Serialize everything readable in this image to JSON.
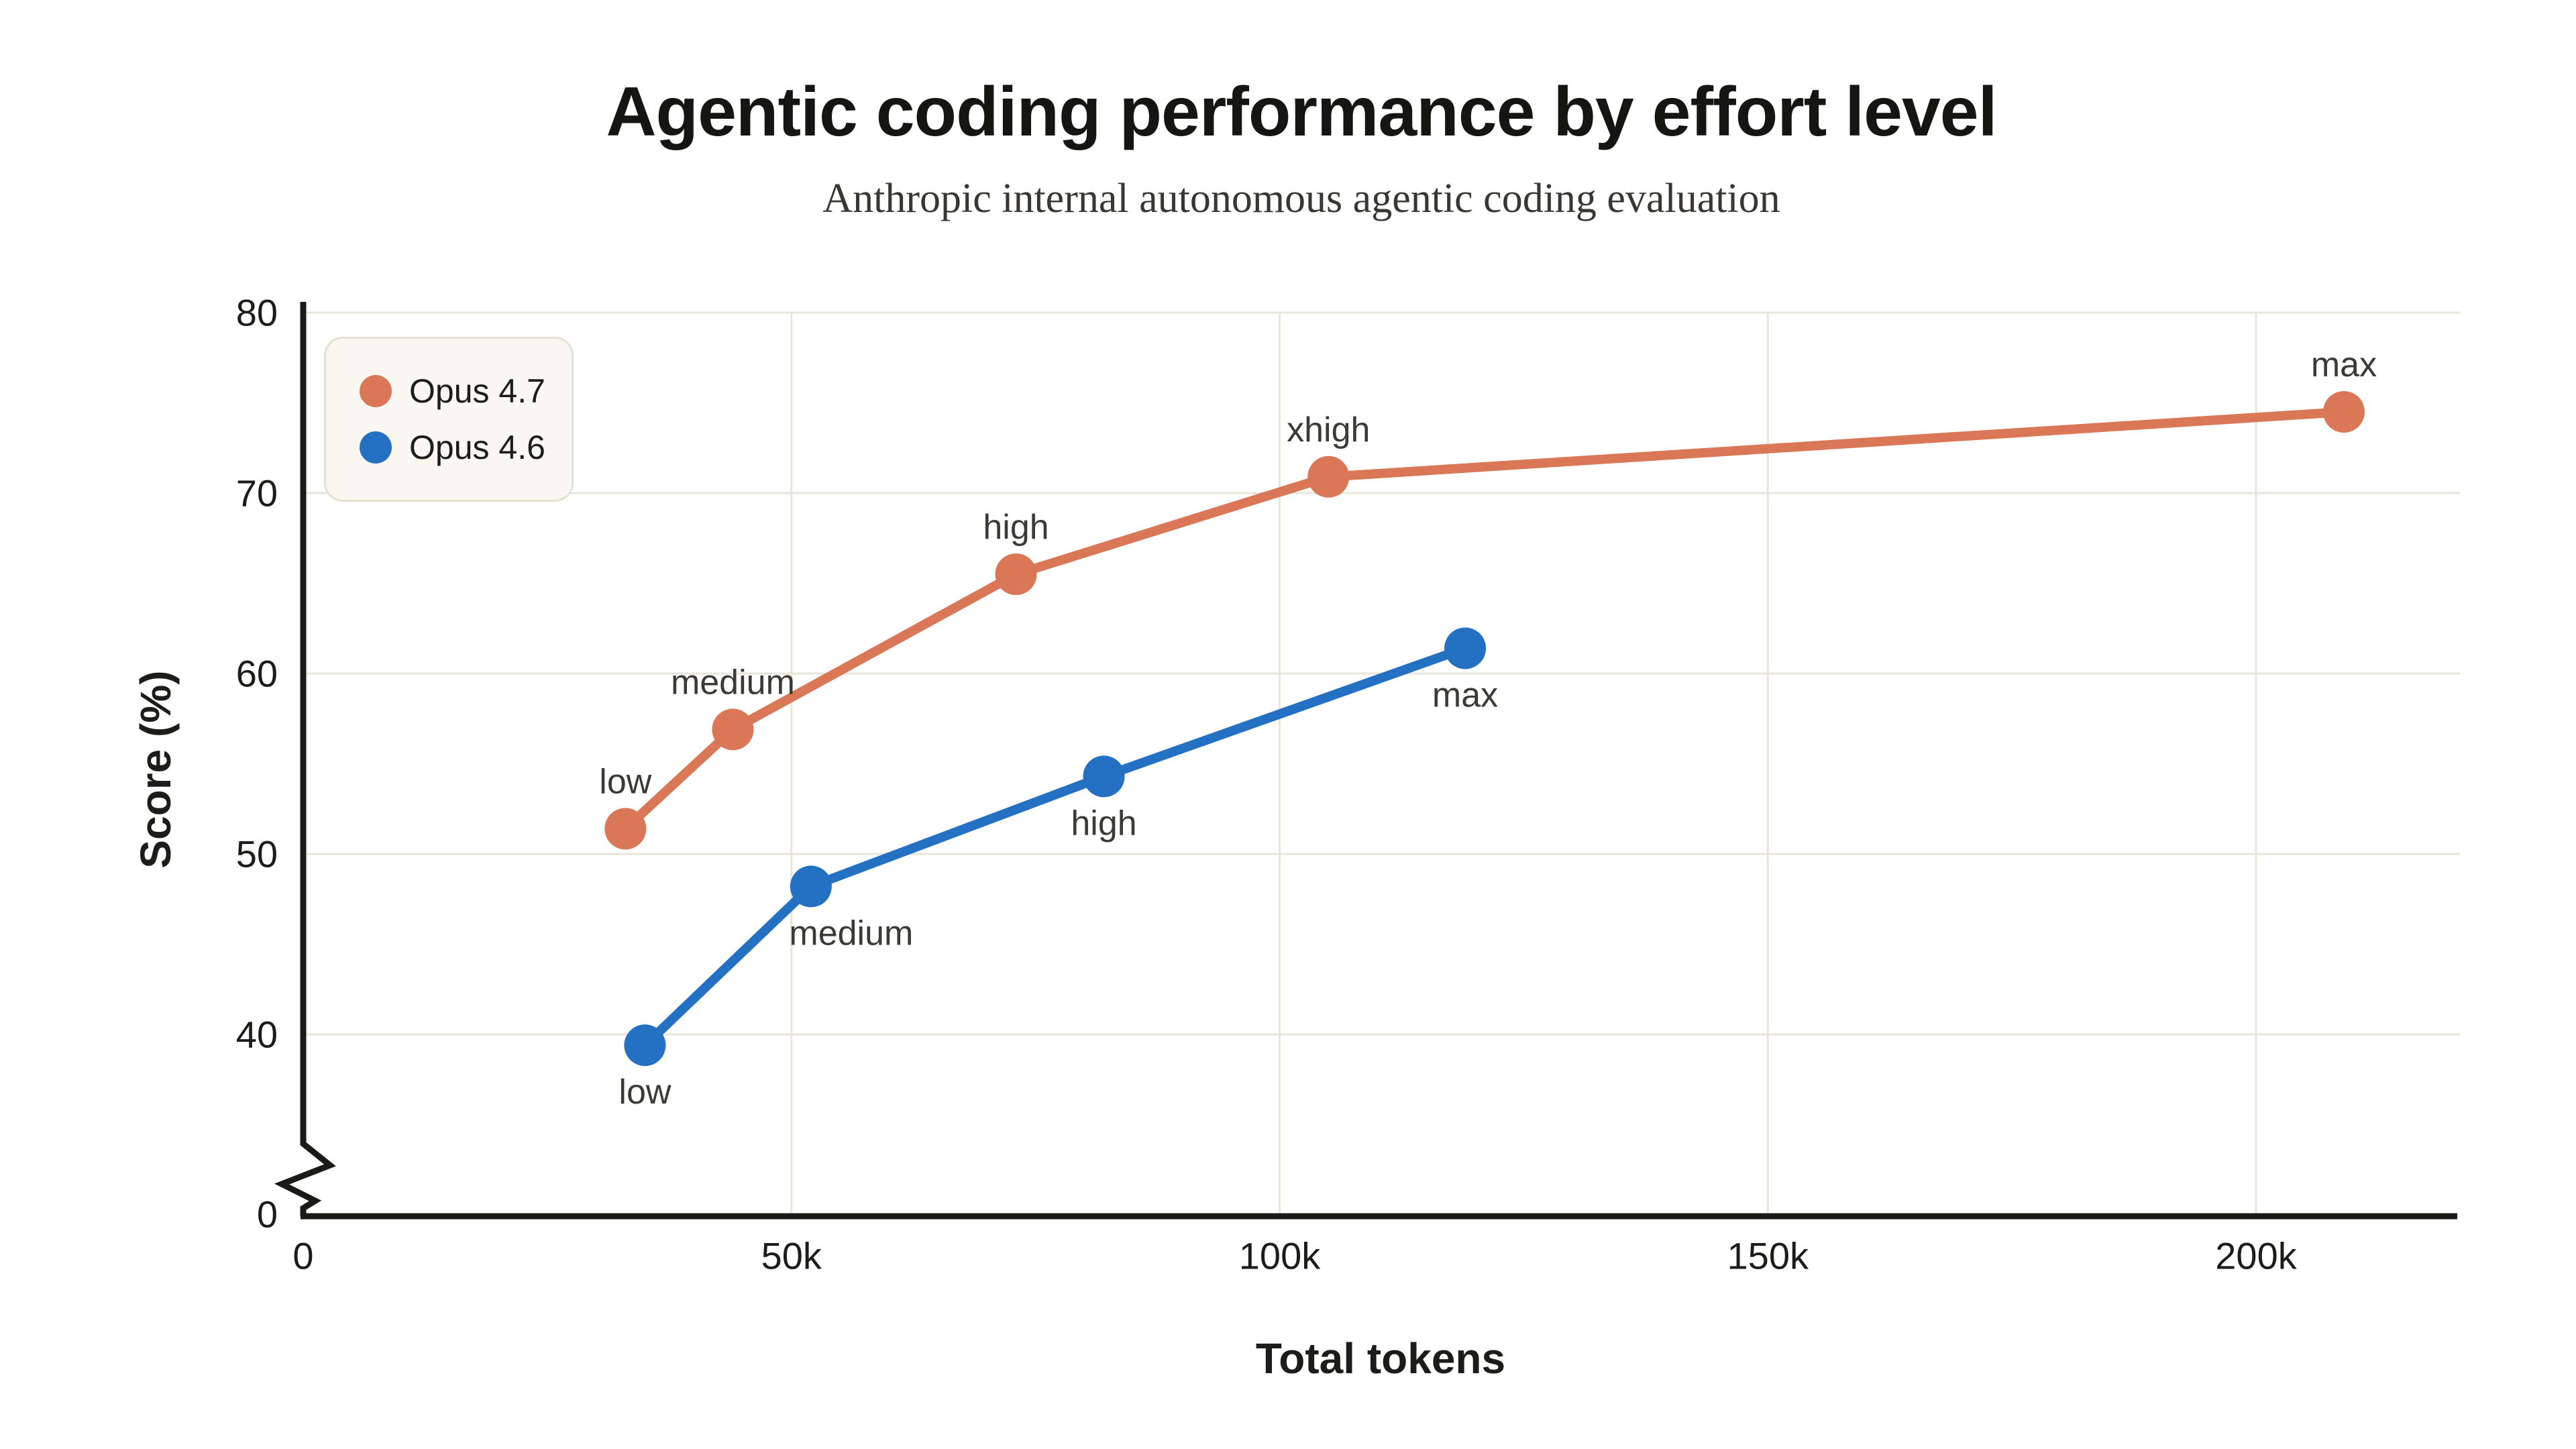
{
  "header": {
    "title": "Agentic coding performance by effort level",
    "subtitle": "Anthropic internal autonomous agentic coding evaluation"
  },
  "axes": {
    "x_label": "Total tokens",
    "y_label": "Score (%)"
  },
  "legend": {
    "position": "top-left",
    "entries": [
      {
        "label": "Opus 4.7",
        "color": "#d97757"
      },
      {
        "label": "Opus 4.6",
        "color": "#2470c2"
      }
    ]
  },
  "colors": {
    "background": "#ffffff",
    "grid": "#e9e5da",
    "axis": "#1a1a17",
    "tick_text": "#1c1c19",
    "point_label_text": "#3c3a35",
    "title_text": "#151512",
    "subtitle_text": "#3a3732",
    "legend_bg": "#f9f7f0",
    "legend_border": "#e5e1d3",
    "series_orange": "#d97757",
    "series_blue": "#2470c2"
  },
  "chart_data": {
    "type": "line",
    "title": "Agentic coding performance by effort level",
    "subtitle": "Anthropic internal autonomous agentic coding evaluation",
    "xlabel": "Total tokens",
    "ylabel": "Score (%)",
    "grid": true,
    "legend_position": "top-left",
    "x_axis": {
      "min": 0,
      "max": 200000,
      "ticks": [
        {
          "value": 0,
          "label": "0"
        },
        {
          "value": 50000,
          "label": "50k"
        },
        {
          "value": 100000,
          "label": "100k"
        },
        {
          "value": 150000,
          "label": "150k"
        },
        {
          "value": 200000,
          "label": "200k"
        }
      ]
    },
    "y_axis": {
      "broken_axis": true,
      "display_range": [
        40,
        80
      ],
      "ticks": [
        {
          "value": 0,
          "label": "0"
        },
        {
          "value": 40,
          "label": "40"
        },
        {
          "value": 50,
          "label": "50"
        },
        {
          "value": 60,
          "label": "60"
        },
        {
          "value": 70,
          "label": "70"
        },
        {
          "value": 80,
          "label": "80"
        }
      ]
    },
    "series": [
      {
        "name": "Opus 4.7",
        "color": "#d97757",
        "points": [
          {
            "effort": "low",
            "tokens": 33000,
            "score": 51.4,
            "label_side": "above",
            "label_dx": 0
          },
          {
            "effort": "medium",
            "tokens": 44000,
            "score": 56.9,
            "label_side": "above",
            "label_dx": 0
          },
          {
            "effort": "high",
            "tokens": 73000,
            "score": 65.5,
            "label_side": "above",
            "label_dx": 0
          },
          {
            "effort": "xhigh",
            "tokens": 105000,
            "score": 70.9,
            "label_side": "above",
            "label_dx": 0
          },
          {
            "effort": "max",
            "tokens": 209000,
            "score": 74.5,
            "label_side": "above",
            "label_dx": 0
          }
        ]
      },
      {
        "name": "Opus 4.6",
        "color": "#2470c2",
        "points": [
          {
            "effort": "low",
            "tokens": 35000,
            "score": 39.4,
            "label_side": "below",
            "label_dx": 0
          },
          {
            "effort": "medium",
            "tokens": 52000,
            "score": 48.2,
            "label_side": "below",
            "label_dx": 60
          },
          {
            "effort": "high",
            "tokens": 82000,
            "score": 54.3,
            "label_side": "below",
            "label_dx": 0
          },
          {
            "effort": "max",
            "tokens": 119000,
            "score": 61.4,
            "label_side": "below",
            "label_dx": 0
          }
        ]
      }
    ]
  }
}
